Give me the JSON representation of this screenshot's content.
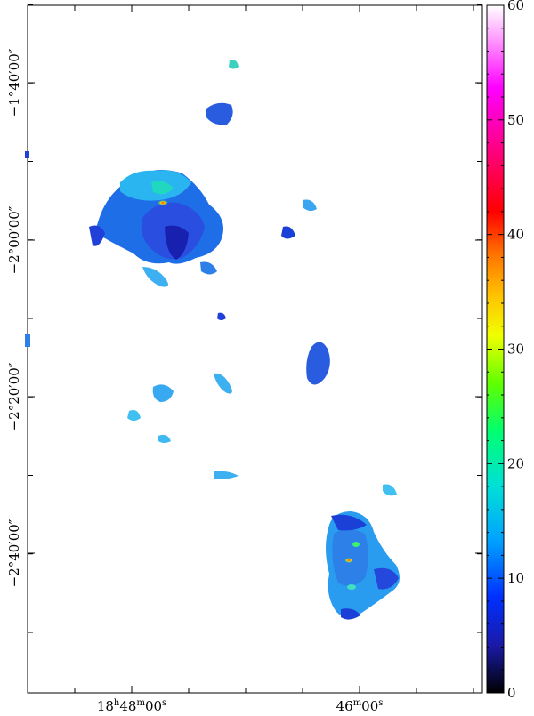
{
  "figure": {
    "ra_labels": [
      {
        "h": "18",
        "m": "48",
        "s": "00",
        "style": "full"
      },
      {
        "h": "",
        "m": "46",
        "s": "00",
        "style": "short"
      }
    ],
    "dec_labels": [
      "−1°40′00″",
      "−2°00′00″",
      "−2°20′00″",
      "−2°40′00″"
    ],
    "colorbar": {
      "ticks": [
        "60",
        "50",
        "40",
        "30",
        "20",
        "10",
        "0"
      ],
      "colors": [
        "#000000",
        "#1a1aa8",
        "#0040ff",
        "#00a0ff",
        "#00e0e0",
        "#00ff80",
        "#40ff00",
        "#e8ff00",
        "#ffc000",
        "#ff7000",
        "#ff0000",
        "#ff0090",
        "#ff00ff",
        "#ff99ff",
        "#ffffff"
      ]
    }
  }
}
